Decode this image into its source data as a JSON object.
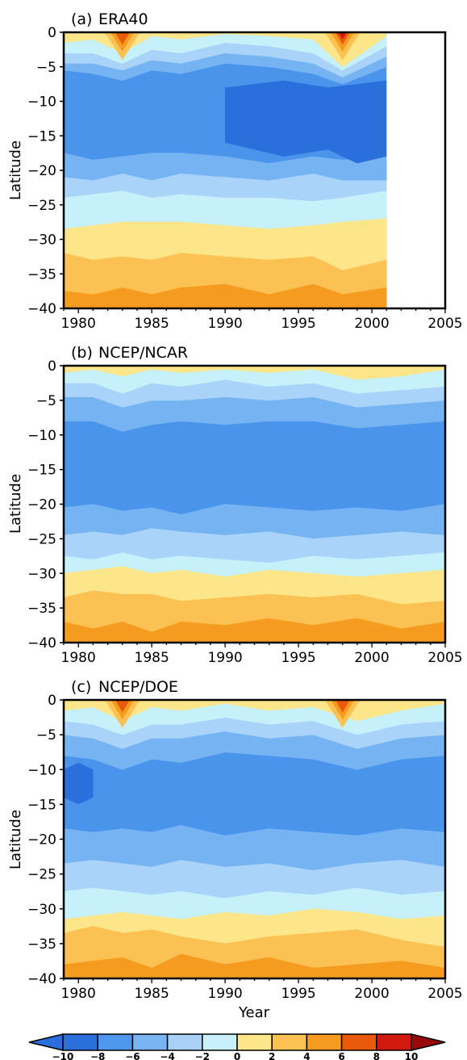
{
  "chart_data": [
    {
      "type": "heatmap",
      "panel_label": "(a)",
      "title": "ERA40",
      "ylabel": "Latitude",
      "xlabel": "",
      "xlim": [
        1979,
        2005
      ],
      "ylim": [
        -40,
        0
      ],
      "x_ticks": [
        "1980",
        "1985",
        "1990",
        "1995",
        "2000",
        "2005"
      ],
      "y_ticks": [
        "0",
        "-5",
        "-10",
        "-15",
        "-20",
        "-25",
        "-30",
        "-35",
        "-40"
      ],
      "data_x_range": [
        1979,
        2001
      ],
      "boundaries": {
        "x": [
          1979,
          1981,
          1983,
          1985,
          1987,
          1990,
          1993,
          1996,
          1998,
          2001
        ],
        "b_neg2_0": [
          -28.5,
          -28.0,
          -27.5,
          -27.5,
          -27.5,
          -28.0,
          -28.5,
          -28.0,
          -27.5,
          -27.0
        ],
        "b_0_2": [
          -32.0,
          -33.0,
          -32.5,
          -33.0,
          -32.0,
          -32.5,
          -33.0,
          -32.5,
          -34.5,
          -33.0
        ],
        "b_2_4": [
          -37.5,
          -38.0,
          -37.0,
          -38.0,
          -37.0,
          -36.5,
          -38.0,
          -36.5,
          -38.0,
          -37.0
        ],
        "b_neg4_neg2": [
          -24.0,
          -23.5,
          -23.0,
          -24.0,
          -23.5,
          -24.0,
          -24.0,
          -24.5,
          -24.0,
          -23.0
        ],
        "b_neg6_neg4": [
          -21.0,
          -21.5,
          -20.5,
          -21.5,
          -20.5,
          -21.0,
          -21.5,
          -20.5,
          -21.5,
          -21.5
        ],
        "b_neg8_neg6": [
          -17.5,
          -18.5,
          -18.0,
          -17.5,
          -17.5,
          -18.0,
          -19.0,
          -18.0,
          -18.5,
          -18.0
        ],
        "top_pos_band": [
          -1.5,
          -1.0,
          -3.0,
          -0.5,
          -1.0,
          -0.2,
          -0.5,
          -1.0,
          -5.0,
          -0.5
        ],
        "top_0_neg2": [
          -3.0,
          -3.0,
          -4.5,
          -2.5,
          -3.0,
          -1.5,
          -2.0,
          -3.0,
          -5.5,
          -2.0
        ],
        "top_neg2_neg4": [
          -4.5,
          -4.5,
          -5.5,
          -4.0,
          -4.5,
          -3.0,
          -3.5,
          -4.5,
          -6.5,
          -3.5
        ],
        "top_neg4_neg6": [
          -5.5,
          -6.0,
          -7.0,
          -5.5,
          -6.0,
          -4.5,
          -5.0,
          -6.0,
          -7.5,
          -5.0
        ]
      },
      "strong_core": {
        "x": [
          1990,
          1994,
          1997,
          1999,
          2001
        ],
        "y_top": [
          -8.0,
          -7.0,
          -8.0,
          -7.5,
          -7.0
        ],
        "y_bot": [
          -16.0,
          -18.0,
          -17.0,
          -19.0,
          -18.0
        ]
      },
      "warm_peaks": [
        {
          "x": 1983,
          "value": 8
        },
        {
          "x": 1998,
          "value": 10
        }
      ]
    },
    {
      "type": "heatmap",
      "panel_label": "(b)",
      "title": "NCEP/NCAR",
      "ylabel": "Latitude",
      "xlabel": "",
      "xlim": [
        1979,
        2005
      ],
      "ylim": [
        -40,
        0
      ],
      "x_ticks": [
        "1980",
        "1985",
        "1990",
        "1995",
        "2000",
        "2005"
      ],
      "y_ticks": [
        "0",
        "-5",
        "-10",
        "-15",
        "-20",
        "-25",
        "-30",
        "-35",
        "-40"
      ],
      "data_x_range": [
        1979,
        2005
      ],
      "boundaries": {
        "x": [
          1979,
          1981,
          1983,
          1985,
          1987,
          1990,
          1993,
          1996,
          1999,
          2002,
          2005
        ],
        "b_neg2_0": [
          -30.0,
          -29.5,
          -29.0,
          -30.0,
          -29.5,
          -30.5,
          -29.5,
          -30.0,
          -30.5,
          -30.0,
          -29.5
        ],
        "b_0_2": [
          -33.5,
          -32.5,
          -33.0,
          -33.0,
          -34.0,
          -33.5,
          -33.0,
          -33.5,
          -33.0,
          -34.5,
          -34.0
        ],
        "b_2_4": [
          -37.0,
          -38.0,
          -37.0,
          -38.5,
          -37.0,
          -37.5,
          -36.5,
          -37.5,
          -36.5,
          -38.0,
          -37.0
        ],
        "b_neg4_neg2": [
          -27.5,
          -28.0,
          -27.0,
          -28.0,
          -27.5,
          -28.0,
          -28.5,
          -27.5,
          -28.0,
          -27.5,
          -27.0
        ],
        "b_neg6_neg4": [
          -24.5,
          -24.0,
          -24.5,
          -23.5,
          -24.0,
          -24.5,
          -24.0,
          -25.0,
          -24.5,
          -24.0,
          -24.5
        ],
        "b_neg8_neg6": [
          -20.5,
          -20.0,
          -21.0,
          -20.5,
          -21.5,
          -20.0,
          -20.5,
          -21.0,
          -20.5,
          -21.0,
          -20.0
        ],
        "top_pos_band": [
          -1.0,
          -0.5,
          -1.5,
          -0.5,
          -1.0,
          -0.5,
          -1.0,
          -0.5,
          -2.0,
          -1.5,
          -0.5
        ],
        "top_0_neg2": [
          -2.5,
          -2.5,
          -4.0,
          -2.5,
          -3.0,
          -2.0,
          -3.0,
          -2.5,
          -4.0,
          -3.5,
          -3.0
        ],
        "top_neg2_neg4": [
          -4.5,
          -4.5,
          -6.0,
          -5.0,
          -5.0,
          -4.5,
          -5.0,
          -4.5,
          -6.0,
          -5.5,
          -5.0
        ],
        "top_neg4_neg6": [
          -8.0,
          -8.0,
          -9.5,
          -8.5,
          -8.0,
          -8.5,
          -8.0,
          -8.0,
          -9.0,
          -8.5,
          -8.0
        ]
      },
      "strong_core": null,
      "warm_peaks": []
    },
    {
      "type": "heatmap",
      "panel_label": "(c)",
      "title": "NCEP/DOE",
      "ylabel": "Latitude",
      "xlabel": "Year",
      "xlim": [
        1979,
        2005
      ],
      "ylim": [
        -40,
        0
      ],
      "x_ticks": [
        "1980",
        "1985",
        "1990",
        "1995",
        "2000",
        "2005"
      ],
      "y_ticks": [
        "0",
        "-5",
        "-10",
        "-15",
        "-20",
        "-25",
        "-30",
        "-35",
        "-40"
      ],
      "data_x_range": [
        1979,
        2005
      ],
      "boundaries": {
        "x": [
          1979,
          1981,
          1983,
          1985,
          1987,
          1990,
          1993,
          1996,
          1999,
          2002,
          2005
        ],
        "b_neg2_0": [
          -31.5,
          -31.0,
          -30.5,
          -31.0,
          -31.5,
          -30.5,
          -31.0,
          -30.0,
          -30.5,
          -31.5,
          -31.0
        ],
        "b_0_2": [
          -33.5,
          -32.5,
          -33.5,
          -33.0,
          -34.0,
          -35.0,
          -34.0,
          -33.5,
          -33.0,
          -34.5,
          -35.5
        ],
        "b_2_4": [
          -38.0,
          -37.5,
          -37.0,
          -38.5,
          -36.5,
          -38.0,
          -37.0,
          -38.5,
          -38.0,
          -37.5,
          -38.5
        ],
        "b_neg4_neg2": [
          -27.5,
          -27.0,
          -27.5,
          -28.0,
          -27.5,
          -28.5,
          -27.5,
          -28.0,
          -27.0,
          -28.0,
          -27.5
        ],
        "b_neg6_neg4": [
          -23.5,
          -23.0,
          -23.5,
          -24.0,
          -23.0,
          -24.0,
          -23.5,
          -24.5,
          -23.5,
          -23.0,
          -24.0
        ],
        "b_neg8_neg6": [
          -18.5,
          -19.0,
          -18.5,
          -19.0,
          -18.0,
          -19.5,
          -18.5,
          -19.0,
          -19.5,
          -18.5,
          -19.0
        ],
        "top_pos_band": [
          -1.5,
          -1.0,
          -3.0,
          -1.0,
          -1.5,
          -0.5,
          -1.5,
          -1.0,
          -3.0,
          -1.5,
          -0.5
        ],
        "top_0_neg2": [
          -3.0,
          -3.5,
          -5.0,
          -3.5,
          -3.5,
          -2.5,
          -3.5,
          -3.0,
          -5.0,
          -3.5,
          -3.0
        ],
        "top_neg2_neg4": [
          -5.0,
          -5.5,
          -7.0,
          -5.5,
          -5.5,
          -4.5,
          -5.5,
          -5.0,
          -7.0,
          -5.5,
          -5.0
        ],
        "top_neg4_neg6": [
          -8.0,
          -8.5,
          -10.0,
          -8.5,
          -9.0,
          -7.5,
          -8.0,
          -8.5,
          -10.0,
          -8.5,
          -8.0
        ]
      },
      "strong_core": {
        "x": [
          1979,
          1980,
          1981
        ],
        "y_top": [
          -10.0,
          -9.0,
          -10.0
        ],
        "y_bot": [
          -14.0,
          -15.0,
          -14.0
        ]
      },
      "warm_peaks": [
        {
          "x": 1983,
          "value": 8
        },
        {
          "x": 1998,
          "value": 8
        }
      ]
    }
  ],
  "colorbar": {
    "levels": [
      "-10",
      "-8",
      "-6",
      "-4",
      "-2",
      "0",
      "2",
      "4",
      "6",
      "8",
      "10"
    ],
    "colors": [
      "#2a6fdb",
      "#4f97ec",
      "#7bb4f2",
      "#a9d1f7",
      "#c8f0fa",
      "#fde68a",
      "#fbc153",
      "#f59c20",
      "#ea5a0c",
      "#d01a0e",
      "#9b0a0a"
    ],
    "band_colors": {
      "lt_neg8": "#2a6fdb",
      "neg8_neg6": "#4a94ec",
      "neg6_neg4": "#76b3f2",
      "neg4_neg2": "#a9d3f8",
      "neg2_0": "#c6f0fa",
      "p0_2": "#fde68a",
      "p2_4": "#fbc153",
      "p4_6": "#f59c20",
      "p6_8": "#ea5a0c",
      "p8_10": "#d01a0e"
    }
  }
}
